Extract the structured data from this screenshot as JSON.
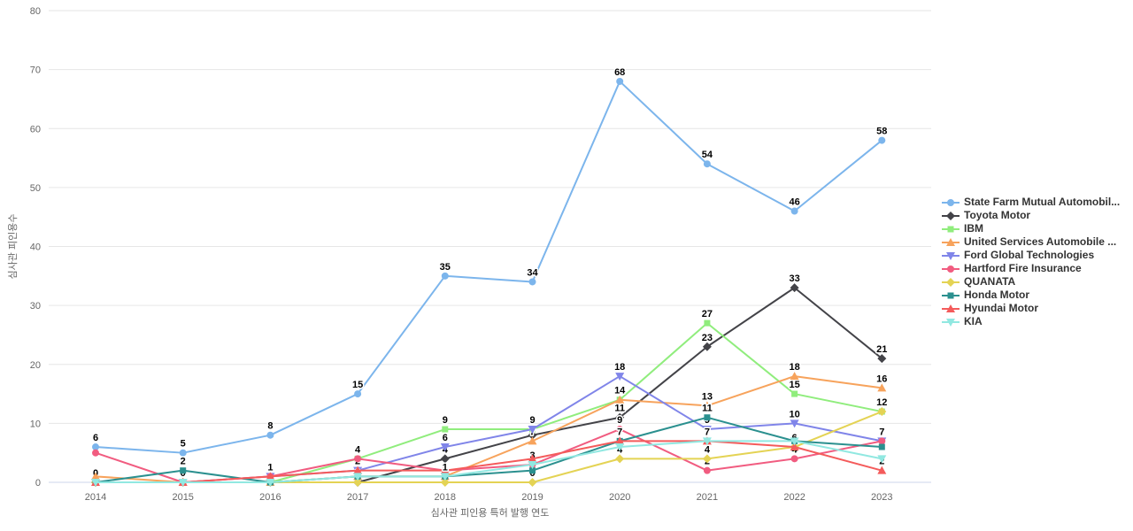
{
  "chart_data": {
    "type": "line",
    "title": "",
    "xlabel": "심사관 피인용 특허 발행 연도",
    "ylabel": "심사관 피인용수",
    "x": [
      2014,
      2015,
      2016,
      2017,
      2018,
      2019,
      2020,
      2021,
      2022,
      2023
    ],
    "ylim": [
      0,
      80
    ],
    "yticks": [
      0,
      10,
      20,
      30,
      40,
      50,
      60,
      70,
      80
    ],
    "grid": true,
    "legend_position": "right",
    "background_color": "#ffffff",
    "gridline_color": "#e6e6e6",
    "axis_line_color": "#ccd6eb",
    "tick_label_color": "#666666",
    "axis_title_color": "#666666",
    "data_label_color": "#000000",
    "series": [
      {
        "name": "State Farm Mutual Automobil...",
        "color": "#7cb5ec",
        "marker": "circle",
        "values": [
          6,
          5,
          8,
          15,
          35,
          34,
          68,
          54,
          46,
          58
        ],
        "labels": [
          6,
          5,
          8,
          15,
          35,
          34,
          68,
          54,
          46,
          58
        ]
      },
      {
        "name": "Toyota Motor",
        "color": "#434348",
        "marker": "diamond",
        "values": [
          0,
          0,
          0,
          0,
          4,
          8,
          11,
          23,
          33,
          21
        ],
        "labels": [
          null,
          null,
          null,
          null,
          4,
          null,
          11,
          23,
          33,
          21
        ]
      },
      {
        "name": "IBM",
        "color": "#90ed7d",
        "marker": "square",
        "values": [
          0,
          0,
          0,
          4,
          9,
          9,
          14,
          27,
          15,
          12
        ],
        "labels": [
          0,
          null,
          null,
          null,
          9,
          9,
          14,
          27,
          15,
          12
        ]
      },
      {
        "name": "United Services Automobile ...",
        "color": "#f7a35c",
        "marker": "triangle",
        "values": [
          1,
          0,
          0,
          1,
          1,
          7,
          14,
          13,
          18,
          16
        ],
        "labels": [
          null,
          0,
          null,
          null,
          null,
          7,
          null,
          13,
          18,
          16
        ]
      },
      {
        "name": "Ford Global Technologies",
        "color": "#8085e9",
        "marker": "triangle-down",
        "values": [
          0,
          0,
          1,
          2,
          6,
          9,
          18,
          9,
          10,
          7
        ],
        "labels": [
          null,
          null,
          null,
          2,
          6,
          null,
          18,
          9,
          10,
          null
        ]
      },
      {
        "name": "Hartford Fire Insurance",
        "color": "#f15c80",
        "marker": "circle",
        "values": [
          5,
          0,
          1,
          4,
          2,
          3,
          9,
          2,
          4,
          7
        ],
        "labels": [
          null,
          null,
          1,
          4,
          null,
          3,
          9,
          2,
          4,
          7
        ]
      },
      {
        "name": "QUANATA",
        "color": "#e4d354",
        "marker": "diamond",
        "values": [
          0,
          0,
          0,
          0,
          0,
          0,
          4,
          4,
          6,
          12
        ],
        "labels": [
          null,
          null,
          null,
          0,
          null,
          0,
          4,
          4,
          null,
          null
        ]
      },
      {
        "name": "Honda Motor",
        "color": "#2b908f",
        "marker": "square",
        "values": [
          0,
          2,
          0,
          1,
          1,
          2,
          7,
          11,
          7,
          6
        ],
        "labels": [
          null,
          2,
          null,
          null,
          null,
          null,
          7,
          11,
          null,
          null
        ]
      },
      {
        "name": "Hyundai Motor",
        "color": "#f45b5b",
        "marker": "triangle",
        "values": [
          0,
          0,
          1,
          2,
          2,
          4,
          7,
          7,
          6,
          2
        ],
        "labels": [
          null,
          null,
          null,
          null,
          null,
          null,
          null,
          null,
          6,
          2
        ]
      },
      {
        "name": "KIA",
        "color": "#91e8e1",
        "marker": "triangle-down",
        "values": [
          0,
          0,
          0,
          1,
          1,
          3,
          6,
          7,
          7,
          4
        ],
        "labels": [
          null,
          null,
          null,
          null,
          1,
          null,
          null,
          7,
          null,
          null
        ]
      }
    ]
  }
}
